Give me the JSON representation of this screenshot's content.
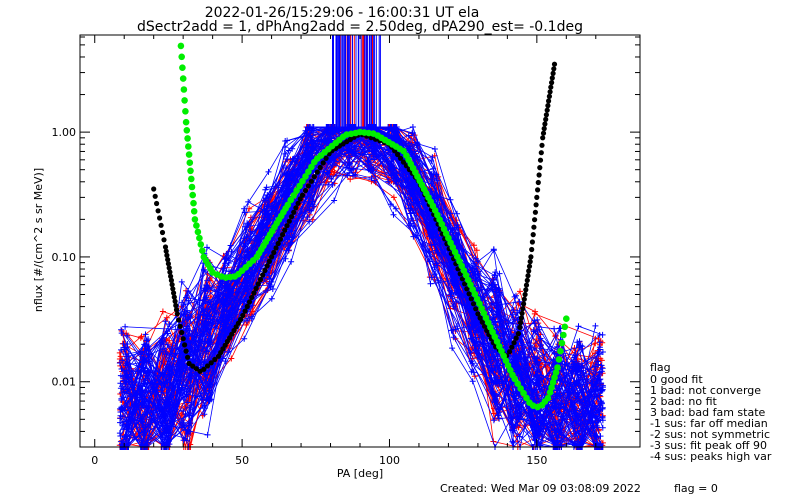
{
  "chart_data": {
    "type": "scatter",
    "title_line1": "2022-01-26/15:29:06 - 16:00:31 UT ela",
    "title_line2": "dSectr2add = 1, dPhAng2add = 2.50deg, dPA290_est=  -0.1deg",
    "xlabel": "PA [deg]",
    "ylabel": "nflux [#/(cm^2 s sr MeV)]",
    "xlim": [
      -5,
      185
    ],
    "ylim": [
      0.003,
      6
    ],
    "yscale": "log",
    "x_ticks": [
      0,
      50,
      100,
      150
    ],
    "y_ticks": [
      0.01,
      0.1,
      1.0
    ],
    "y_tick_labels": [
      "0.01",
      "0.10",
      "1.00"
    ],
    "colors": {
      "red": "#ff0000",
      "blue": "#0000ff",
      "green": "#00ee00",
      "black": "#000000"
    },
    "fit_curves": [
      {
        "color": "black",
        "x": [
          20,
          24,
          28,
          32,
          36,
          42,
          50,
          60,
          70,
          80,
          90,
          100,
          110,
          120,
          130,
          136,
          140,
          144,
          148,
          152,
          156
        ],
        "y": [
          0.35,
          0.12,
          0.035,
          0.014,
          0.012,
          0.016,
          0.033,
          0.1,
          0.3,
          0.7,
          0.97,
          0.8,
          0.4,
          0.12,
          0.035,
          0.019,
          0.016,
          0.025,
          0.1,
          0.9,
          3.5
        ]
      },
      {
        "color": "green",
        "x": [
          29,
          31,
          34,
          37,
          40,
          44,
          48,
          55,
          65,
          75,
          85,
          90,
          95,
          105,
          115,
          125,
          135,
          142,
          148,
          151,
          154,
          157,
          160
        ],
        "y": [
          6,
          1.2,
          0.2,
          0.1,
          0.075,
          0.068,
          0.07,
          0.1,
          0.25,
          0.6,
          0.95,
          1.0,
          0.97,
          0.7,
          0.25,
          0.08,
          0.025,
          0.011,
          0.0065,
          0.0062,
          0.0075,
          0.013,
          0.032
        ]
      }
    ],
    "spectra_envelope": {
      "pa": [
        10,
        20,
        30,
        40,
        50,
        60,
        70,
        80,
        90,
        100,
        110,
        120,
        130,
        140,
        150,
        160,
        170
      ],
      "center": [
        0.006,
        0.006,
        0.01,
        0.025,
        0.06,
        0.15,
        0.4,
        0.85,
        1.0,
        0.85,
        0.35,
        0.1,
        0.03,
        0.012,
        0.007,
        0.006,
        0.006
      ]
    },
    "legend": {
      "title": "flag",
      "entries": [
        "0 good fit",
        "1 bad: not converge",
        "2 bad: no fit",
        "3 bad: bad fam state",
        "-1 sus: far off median",
        "-2 sus: not symmetric",
        "-3 sus: fit peak off 90",
        "-4 sus: peaks high var"
      ]
    },
    "footer_created": "Created: Wed Mar 09 03:08:09 2022",
    "footer_flag": "flag = 0"
  }
}
